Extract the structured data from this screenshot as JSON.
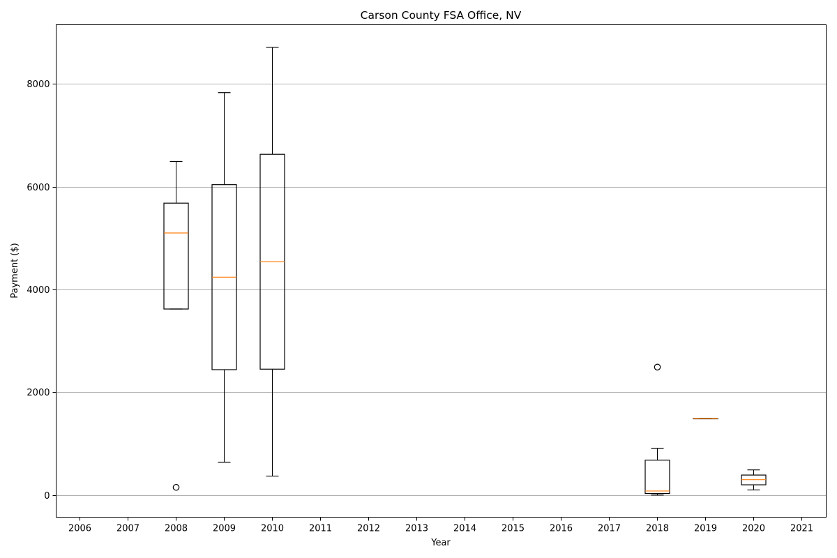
{
  "chart_data": {
    "type": "boxplot",
    "title": "Carson County FSA Office, NV",
    "xlabel": "Year",
    "ylabel": "Payment ($)",
    "ylim": [
      -430,
      9150
    ],
    "yticks": [
      0,
      2000,
      4000,
      6000,
      8000
    ],
    "ytick_labels": [
      "0",
      "2000",
      "4000",
      "6000",
      "8000"
    ],
    "grid": "y",
    "categories": [
      "2006",
      "2007",
      "2008",
      "2009",
      "2010",
      "2011",
      "2012",
      "2013",
      "2014",
      "2015",
      "2016",
      "2017",
      "2018",
      "2019",
      "2020",
      "2021"
    ],
    "boxes": [
      {
        "year": "2008",
        "whisker_low": 3620,
        "q1": 3620,
        "median": 5100,
        "q3": 5680,
        "whisker_high": 6490,
        "outliers": [
          150
        ]
      },
      {
        "year": "2009",
        "whisker_low": 640,
        "q1": 2440,
        "median": 4240,
        "q3": 6040,
        "whisker_high": 7830,
        "outliers": []
      },
      {
        "year": "2010",
        "whisker_low": 370,
        "q1": 2450,
        "median": 4540,
        "q3": 6630,
        "whisker_high": 8710,
        "outliers": []
      },
      {
        "year": "2018",
        "whisker_low": 0,
        "q1": 30,
        "median": 80,
        "q3": 680,
        "whisker_high": 910,
        "outliers": [
          2490
        ]
      },
      {
        "year": "2019",
        "whisker_low": 1490,
        "q1": 1490,
        "median": 1490,
        "q3": 1490,
        "whisker_high": 1490,
        "outliers": []
      },
      {
        "year": "2020",
        "whisker_low": 100,
        "q1": 200,
        "median": 300,
        "q3": 390,
        "whisker_high": 490,
        "outliers": []
      }
    ],
    "colors": {
      "box": "#000000",
      "median": "#ff7f0e",
      "grid": "#b0b0b0"
    }
  }
}
